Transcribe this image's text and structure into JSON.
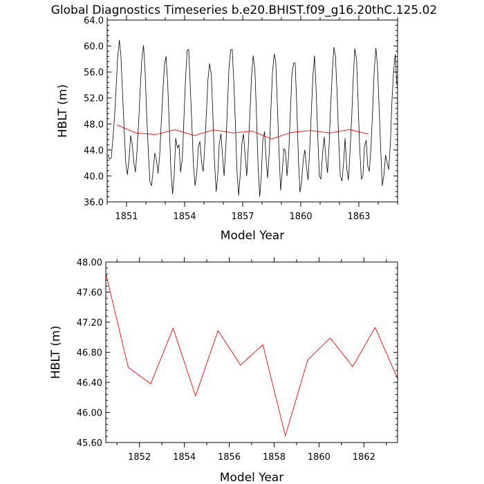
{
  "title": "Global Diagnostics Timeseries b.e20.BHIST.f09_g16.20thC.125.02",
  "colors": {
    "monthly": "#000000",
    "annual": "#ff0000",
    "frame": "#000000"
  },
  "chart_data": [
    {
      "type": "line",
      "xlabel": "Model Year",
      "ylabel": "HBLT (m)",
      "xlim": [
        1850.0,
        1865.0
      ],
      "ylim": [
        36.0,
        64.0
      ],
      "xticks": [
        {
          "value": 1851,
          "label": "1851"
        },
        {
          "value": 1854,
          "label": "1854"
        },
        {
          "value": 1857,
          "label": "1857"
        },
        {
          "value": 1860,
          "label": "1860"
        },
        {
          "value": 1863,
          "label": "1863"
        }
      ],
      "yticks": [
        {
          "value": 36,
          "label": "36.0"
        },
        {
          "value": 40,
          "label": "40.0"
        },
        {
          "value": 44,
          "label": "44.0"
        },
        {
          "value": 48,
          "label": "48.0"
        },
        {
          "value": 52,
          "label": "52.0"
        },
        {
          "value": 56,
          "label": "56.0"
        },
        {
          "value": 60,
          "label": "60.0"
        },
        {
          "value": 64,
          "label": "64.0"
        }
      ],
      "grid": false,
      "series": [
        {
          "color": "#000000",
          "x": [
            1850.04,
            1850.13,
            1850.21,
            1850.29,
            1850.38,
            1850.46,
            1850.54,
            1850.63,
            1850.71,
            1850.79,
            1850.88,
            1850.96,
            1851.04,
            1851.13,
            1851.21,
            1851.29,
            1851.38,
            1851.46,
            1851.54,
            1851.63,
            1851.71,
            1851.79,
            1851.88,
            1851.96,
            1852.04,
            1852.13,
            1852.21,
            1852.29,
            1852.38,
            1852.46,
            1852.54,
            1852.63,
            1852.71,
            1852.79,
            1852.88,
            1852.96,
            1853.04,
            1853.13,
            1853.21,
            1853.29,
            1853.38,
            1853.46,
            1853.54,
            1853.63,
            1853.71,
            1853.79,
            1853.88,
            1853.96,
            1854.04,
            1854.13,
            1854.21,
            1854.29,
            1854.38,
            1854.46,
            1854.54,
            1854.63,
            1854.71,
            1854.79,
            1854.88,
            1854.96,
            1855.04,
            1855.13,
            1855.21,
            1855.29,
            1855.38,
            1855.46,
            1855.54,
            1855.63,
            1855.71,
            1855.79,
            1855.88,
            1855.96,
            1856.04,
            1856.13,
            1856.21,
            1856.29,
            1856.38,
            1856.46,
            1856.54,
            1856.63,
            1856.71,
            1856.79,
            1856.88,
            1856.96,
            1857.04,
            1857.13,
            1857.21,
            1857.29,
            1857.38,
            1857.46,
            1857.54,
            1857.63,
            1857.71,
            1857.79,
            1857.88,
            1857.96,
            1858.04,
            1858.13,
            1858.21,
            1858.29,
            1858.38,
            1858.46,
            1858.54,
            1858.63,
            1858.71,
            1858.79,
            1858.88,
            1858.96,
            1859.04,
            1859.13,
            1859.21,
            1859.29,
            1859.38,
            1859.46,
            1859.54,
            1859.63,
            1859.71,
            1859.79,
            1859.88,
            1859.96,
            1860.04,
            1860.13,
            1860.21,
            1860.29,
            1860.38,
            1860.46,
            1860.54,
            1860.63,
            1860.71,
            1860.79,
            1860.88,
            1860.96,
            1861.04,
            1861.13,
            1861.21,
            1861.29,
            1861.38,
            1861.46,
            1861.54,
            1861.63,
            1861.71,
            1861.79,
            1861.88,
            1861.96,
            1862.04,
            1862.13,
            1862.21,
            1862.29,
            1862.38,
            1862.46,
            1862.54,
            1862.63,
            1862.71,
            1862.79,
            1862.88,
            1862.96,
            1863.04,
            1863.13,
            1863.21,
            1863.29,
            1863.38,
            1863.46,
            1863.54,
            1863.63,
            1863.71,
            1863.79,
            1863.88,
            1863.96,
            1864.04,
            1864.13,
            1864.21,
            1864.29,
            1864.38,
            1864.46,
            1864.54,
            1864.63,
            1864.71,
            1864.79,
            1864.88,
            1864.96
          ],
          "values": [
            43.0,
            42.6,
            42.8,
            45.5,
            49.0,
            53.5,
            58.2,
            60.9,
            58.5,
            53.0,
            47.0,
            42.0,
            40.2,
            42.5,
            46.2,
            45.0,
            42.0,
            40.6,
            43.8,
            48.5,
            53.5,
            58.0,
            60.1,
            56.0,
            49.5,
            43.5,
            39.0,
            38.5,
            41.0,
            43.5,
            42.5,
            40.4,
            43.0,
            48.0,
            53.0,
            57.2,
            58.4,
            54.0,
            47.5,
            41.0,
            37.2,
            40.0,
            45.8,
            44.3,
            44.8,
            40.6,
            42.5,
            48.5,
            54.5,
            59.3,
            59.5,
            54.0,
            47.5,
            41.5,
            38.5,
            40.5,
            44.5,
            45.3,
            42.0,
            40.7,
            44.5,
            50.0,
            55.0,
            57.3,
            55.5,
            49.5,
            42.5,
            37.6,
            40.0,
            45.0,
            46.5,
            43.0,
            40.0,
            44.5,
            50.5,
            56.5,
            59.4,
            59.5,
            54.5,
            47.5,
            40.5,
            37.0,
            40.5,
            45.0,
            46.5,
            43.0,
            40.0,
            44.5,
            50.0,
            55.5,
            58.5,
            56.5,
            49.5,
            42.0,
            36.8,
            40.0,
            45.5,
            46.8,
            42.5,
            39.7,
            44.0,
            50.5,
            56.0,
            58.8,
            57.5,
            51.0,
            43.5,
            37.8,
            40.5,
            44.2,
            43.8,
            40.0,
            43.5,
            49.5,
            55.5,
            57.4,
            57.4,
            51.0,
            42.5,
            37.5,
            39.0,
            42.5,
            44.0,
            41.5,
            39.4,
            44.0,
            49.5,
            55.5,
            58.5,
            53.5,
            46.0,
            40.0,
            39.5,
            43.5,
            46.0,
            43.0,
            40.5,
            44.5,
            50.5,
            56.0,
            59.8,
            58.5,
            52.5,
            45.5,
            40.0,
            39.2,
            42.0,
            45.8,
            41.0,
            39.4,
            43.5,
            49.0,
            55.0,
            59.6,
            58.0,
            51.5,
            44.5,
            39.5,
            40.0,
            44.5,
            45.5,
            41.5,
            40.7,
            44.5,
            50.0,
            56.0,
            59.7,
            57.0,
            51.0,
            44.0,
            38.5,
            40.0,
            43.2,
            42.0,
            41.0,
            45.0,
            51.5,
            56.0,
            58.7,
            54.0
          ]
        },
        {
          "color": "#ff0000",
          "x": [
            1850.5,
            1851.5,
            1852.5,
            1853.5,
            1854.5,
            1855.5,
            1856.5,
            1857.5,
            1858.5,
            1859.5,
            1860.5,
            1861.5,
            1862.5,
            1863.5
          ],
          "values": [
            47.85,
            46.6,
            46.38,
            47.12,
            46.22,
            47.09,
            46.63,
            46.9,
            45.69,
            46.7,
            46.99,
            46.61,
            47.13,
            46.45
          ]
        }
      ]
    },
    {
      "type": "line",
      "xlabel": "Model Year",
      "ylabel": "HBLT (m)",
      "xlim": [
        1850.5,
        1863.5
      ],
      "ylim": [
        45.6,
        48.0
      ],
      "xticks": [
        {
          "value": 1852,
          "label": "1852"
        },
        {
          "value": 1854,
          "label": "1854"
        },
        {
          "value": 1856,
          "label": "1856"
        },
        {
          "value": 1858,
          "label": "1858"
        },
        {
          "value": 1860,
          "label": "1860"
        },
        {
          "value": 1862,
          "label": "1862"
        }
      ],
      "yticks": [
        {
          "value": 45.6,
          "label": "45.60"
        },
        {
          "value": 46.0,
          "label": "46.00"
        },
        {
          "value": 46.4,
          "label": "46.40"
        },
        {
          "value": 46.8,
          "label": "46.80"
        },
        {
          "value": 47.2,
          "label": "47.20"
        },
        {
          "value": 47.6,
          "label": "47.60"
        },
        {
          "value": 48.0,
          "label": "48.00"
        }
      ],
      "grid": false,
      "series": [
        {
          "color": "#ff0000",
          "x": [
            1850.5,
            1851.5,
            1852.5,
            1853.5,
            1854.5,
            1855.5,
            1856.5,
            1857.5,
            1858.5,
            1859.5,
            1860.5,
            1861.5,
            1862.5,
            1863.5
          ],
          "values": [
            47.85,
            46.6,
            46.38,
            47.12,
            46.22,
            47.09,
            46.63,
            46.9,
            45.69,
            46.7,
            46.99,
            46.61,
            47.13,
            46.45
          ]
        }
      ]
    }
  ]
}
